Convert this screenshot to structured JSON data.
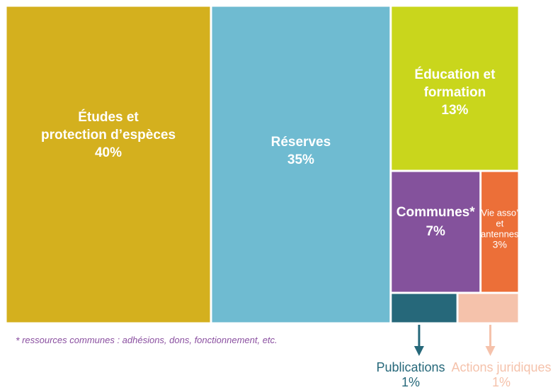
{
  "chart_data": {
    "type": "treemap",
    "unit": "%",
    "items": [
      {
        "name_lines": [
          "Études et",
          "protection d’espèces"
        ],
        "value": 40,
        "value_label": "40%",
        "color": "#d4b01e"
      },
      {
        "name_lines": [
          "Réserves"
        ],
        "value": 35,
        "value_label": "35%",
        "color": "#6fbbd1"
      },
      {
        "name_lines": [
          "Éducation et",
          "formation"
        ],
        "value": 13,
        "value_label": "13%",
        "color": "#c9d61c"
      },
      {
        "name_lines": [
          "Communes*"
        ],
        "value": 7,
        "value_label": "7%",
        "color": "#84529c"
      },
      {
        "name_lines": [
          "Vie asso’",
          "et",
          "antennes"
        ],
        "value": 3,
        "value_label": "3%",
        "color": "#ec6f38"
      },
      {
        "name_lines": [
          "Publications"
        ],
        "value": 1,
        "value_label": "1%",
        "color": "#26687a"
      },
      {
        "name_lines": [
          "Actions juridiques"
        ],
        "value": 1,
        "value_label": "1%",
        "color": "#f5c2ab"
      }
    ]
  },
  "footnote": {
    "star": "*",
    "text": " ressources communes : adhésions, dons, fonctionnement, etc."
  }
}
